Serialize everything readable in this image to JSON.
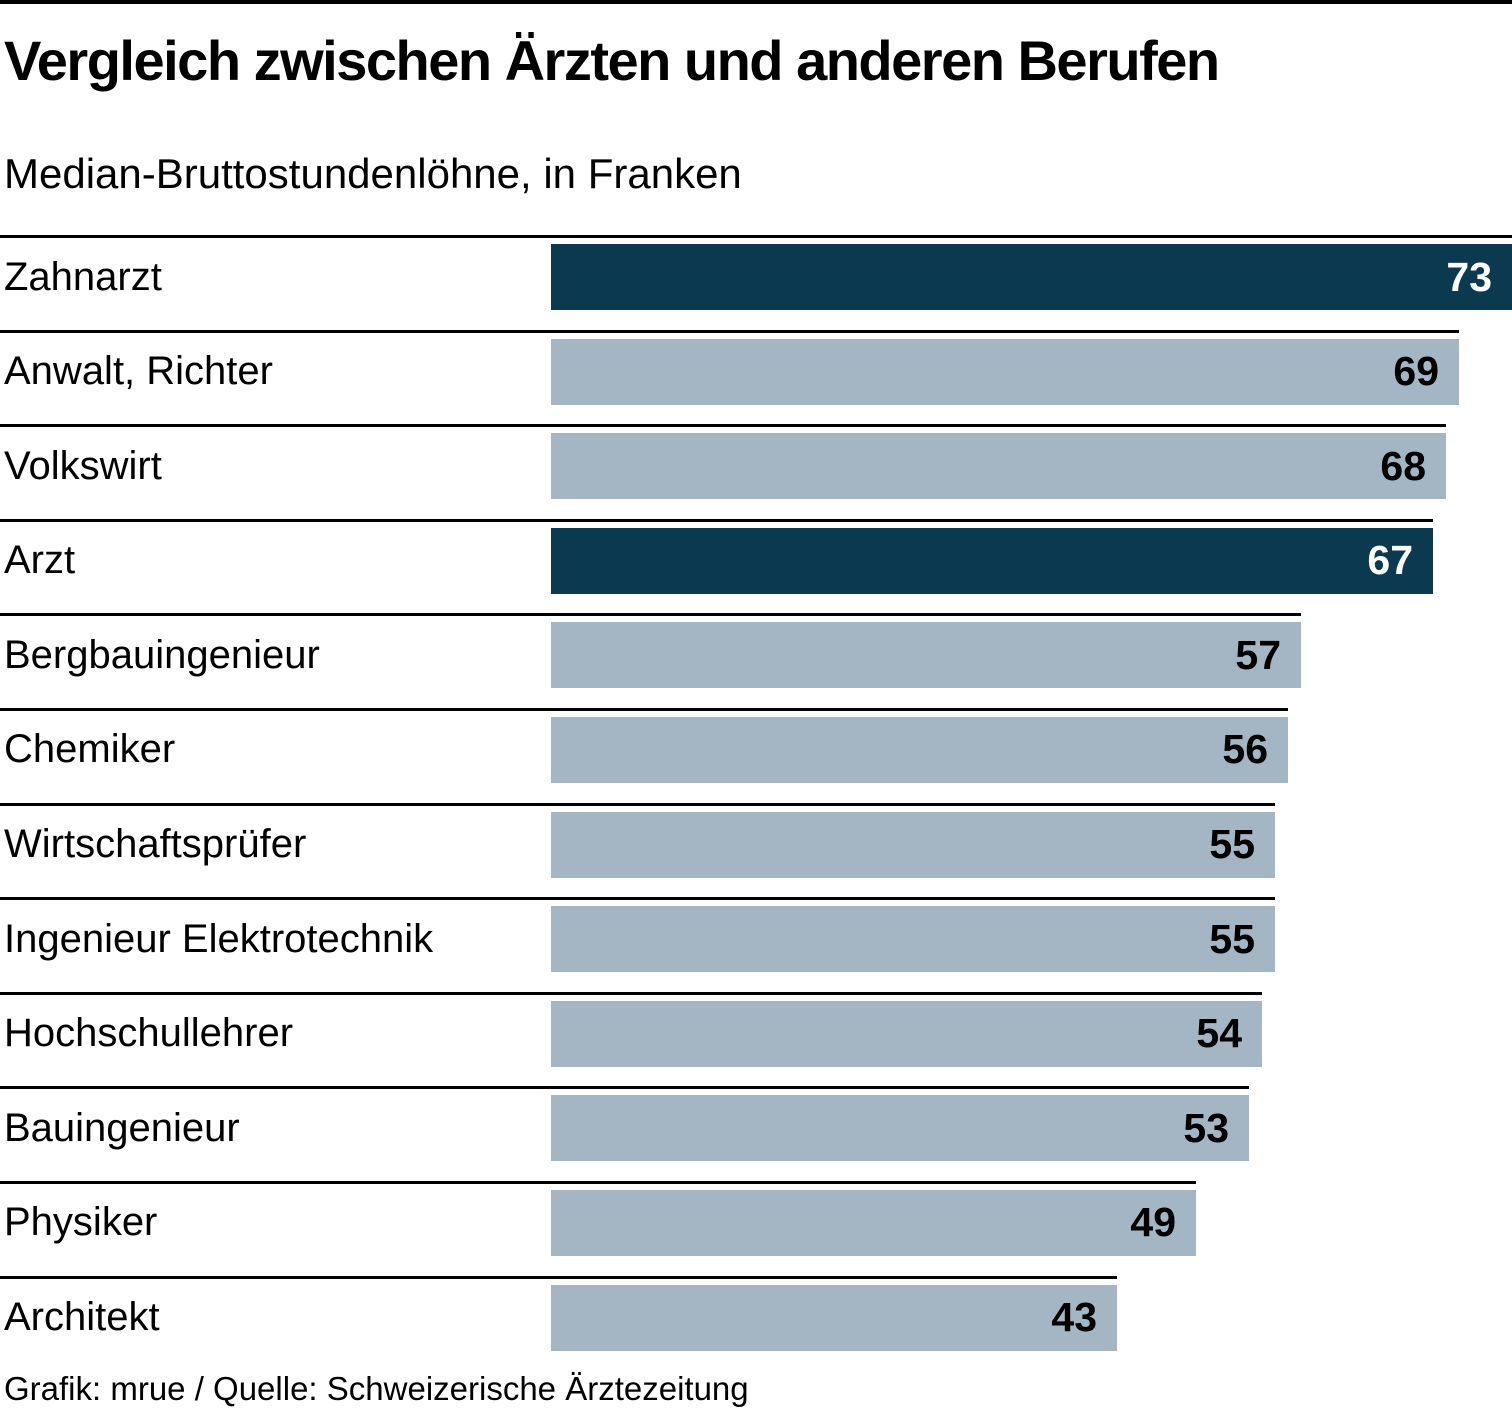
{
  "header": {
    "title": "Vergleich zwischen Ärzten und anderen Berufen",
    "subtitle": "Median-Bruttostundenlöhne, in Franken"
  },
  "footer": {
    "credit": "Grafik: mrue / Quelle: Schweizerische Ärztezeitung"
  },
  "chart_data": {
    "type": "bar",
    "orientation": "horizontal",
    "title": "Vergleich zwischen Ärzten und anderen Berufen",
    "subtitle": "Median-Bruttostundenlöhne, in Franken",
    "unit": "Franken",
    "xlim": [
      0,
      73
    ],
    "grid": false,
    "legend": false,
    "categories": [
      "Zahnarzt",
      "Anwalt, Richter",
      "Volkswirt",
      "Arzt",
      "Bergbauingenieur",
      "Chemiker",
      "Wirtschaftsprüfer",
      "Ingenieur Elektrotechnik",
      "Hochschullehrer",
      "Bauingenieur",
      "Physiker",
      "Architekt"
    ],
    "values": [
      73,
      69,
      68,
      67,
      57,
      56,
      55,
      55,
      54,
      53,
      49,
      43
    ],
    "highlighted_categories": [
      "Zahnarzt",
      "Arzt"
    ],
    "bars": [
      {
        "label": "Zahnarzt",
        "value": 73,
        "highlight": true
      },
      {
        "label": "Anwalt, Richter",
        "value": 69,
        "highlight": false
      },
      {
        "label": "Volkswirt",
        "value": 68,
        "highlight": false
      },
      {
        "label": "Arzt",
        "value": 67,
        "highlight": true
      },
      {
        "label": "Bergbauingenieur",
        "value": 57,
        "highlight": false
      },
      {
        "label": "Chemiker",
        "value": 56,
        "highlight": false
      },
      {
        "label": "Wirtschaftsprüfer",
        "value": 55,
        "highlight": false
      },
      {
        "label": "Ingenieur Elektrotechnik",
        "value": 55,
        "highlight": false
      },
      {
        "label": "Hochschullehrer",
        "value": 54,
        "highlight": false
      },
      {
        "label": "Bauingenieur",
        "value": 53,
        "highlight": false
      },
      {
        "label": "Physiker",
        "value": 49,
        "highlight": false
      },
      {
        "label": "Architekt",
        "value": 43,
        "highlight": false
      }
    ],
    "colors": {
      "bar": "#a4b6c3",
      "highlight": "#0b3a50",
      "value_on_bar": "#000000",
      "value_on_highlight": "#ffffff",
      "rule": "#000000"
    }
  }
}
